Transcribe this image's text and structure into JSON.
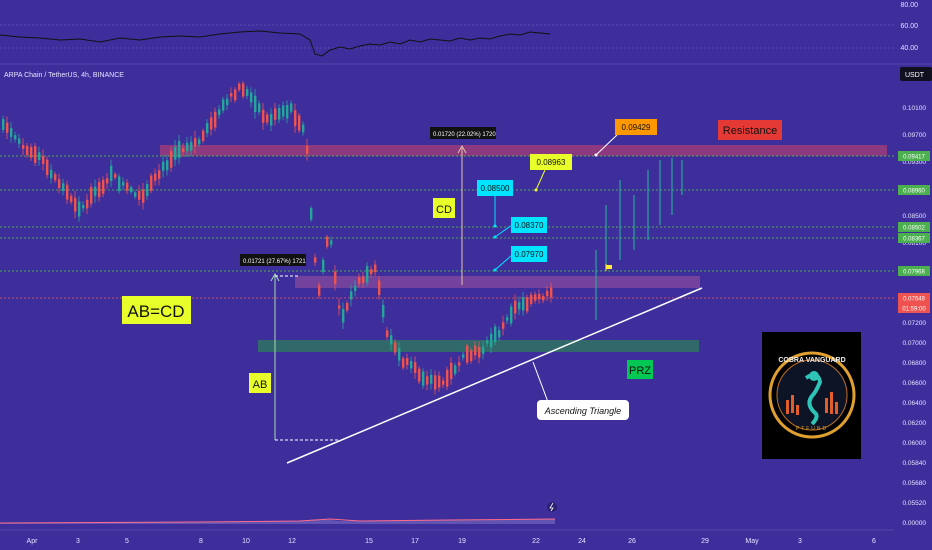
{
  "header": {
    "symbol_line": "ARPA Chain / TetherUS, 4h, BINANCE",
    "currency": "USDT"
  },
  "colors": {
    "background": "#3d2e9c",
    "up": "#26a69a",
    "down": "#ef5350",
    "green_line": "#4caf50",
    "resistance_box": "#a03c78",
    "prz_box": "#2e7d5a",
    "text": "#ffffff"
  },
  "annotations": {
    "ab_cd": "AB=CD",
    "ab": "AB",
    "cd": "CD",
    "prz": "PRZ",
    "resistance": "Resistance",
    "ascending_triangle": "Ascending Triangle",
    "ab_measure": "0.01721 (27.67%) 1721",
    "cd_measure": "0.01720 (22.02%) 1720",
    "targets": [
      "0.07970",
      "0.08370",
      "0.08500",
      "0.08963",
      "0.09429"
    ]
  },
  "logo": {
    "text": "COBRA VANGUARD",
    "letters": "PTFUND"
  },
  "oscillator": {
    "axis_labels": [
      "80.00",
      "60.00",
      "40.00"
    ]
  },
  "chart_data": {
    "type": "candlestick",
    "title": "ARPA Chain / TetherUS, 4h, BINANCE",
    "ylim": [
      0.0,
      0.1016
    ],
    "y_axis_labels": [
      "0.10100",
      "0.09700",
      "0.09300",
      "0.08900",
      "0.08500",
      "0.08100",
      "0.07700",
      "0.07400",
      "0.07200",
      "0.07000",
      "0.06800",
      "0.06600",
      "0.06400",
      "0.06200",
      "0.06000",
      "0.05840",
      "0.05680",
      "0.05520",
      "0.00000"
    ],
    "x_axis_labels": [
      "Apr",
      "3",
      "5",
      "8",
      "10",
      "12",
      "15",
      "17",
      "19",
      "22",
      "24",
      "26",
      "29",
      "May",
      "3",
      "6"
    ],
    "price_badges": [
      {
        "value": "0.09417",
        "color": "#4caf50"
      },
      {
        "value": "0.08960",
        "color": "#4caf50"
      },
      {
        "value": "0.08502",
        "color": "#4caf50"
      },
      {
        "value": "0.08367",
        "color": "#4caf50"
      },
      {
        "value": "0.07968",
        "color": "#4caf50"
      },
      {
        "value": "0.07649",
        "color": "#ef5350"
      },
      {
        "value": "01:59:00",
        "color": "#ef5350"
      }
    ],
    "horizontal_levels": [
      0.09417,
      0.0896,
      0.08502,
      0.08367,
      0.07968
    ],
    "zones": {
      "resistance": [
        0.0935,
        0.0945
      ],
      "sell_zone": [
        0.0769,
        0.0777
      ],
      "prz": [
        0.0705,
        0.0713
      ]
    },
    "trendline": {
      "start": [
        "Apr 12",
        0.0597
      ],
      "end": [
        "Apr 29",
        0.0775
      ]
    },
    "current_price": 0.07649
  }
}
